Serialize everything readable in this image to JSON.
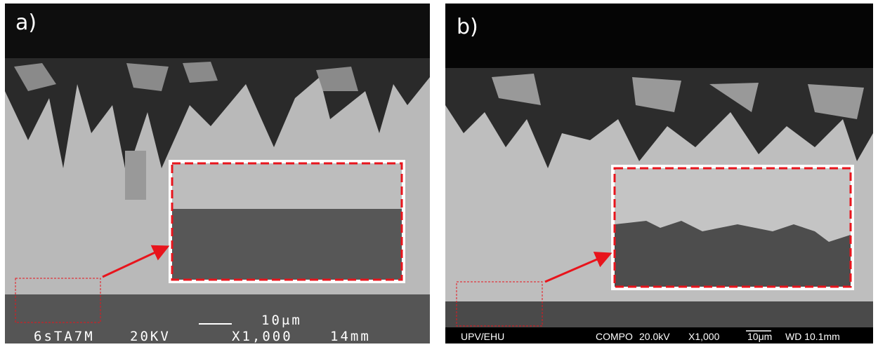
{
  "panels": [
    {
      "label": "a)",
      "footer": [
        "6sTA7M",
        "20KV",
        "10μm",
        "X1,000",
        "14mm"
      ]
    },
    {
      "label": "b)",
      "footer": [
        "UPV/EHU",
        "COMPO",
        "20.0kV",
        "X1,000",
        "10μm",
        "WD 10.1mm"
      ]
    }
  ]
}
